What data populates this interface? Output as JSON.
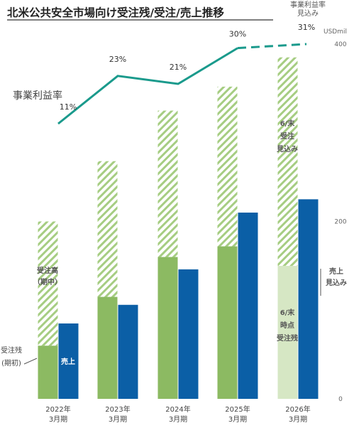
{
  "chart_data": {
    "type": "bar",
    "title": "北米公共安全市場向け受注残/受注/売上推移",
    "unit": "USDmil",
    "ylim": [
      0,
      400
    ],
    "yticks": [
      0,
      200,
      400
    ],
    "categories": [
      "2022年\n3月期",
      "2023年\n3月期",
      "2024年\n3月期",
      "2025年\n3月期",
      "2026年\n3月期"
    ],
    "stack_series": [
      {
        "values": [
          60,
          115,
          160,
          172,
          150
        ],
        "color": "#8cba62",
        "color_last": "#d6e7c4"
      },
      {
        "values": [
          140,
          153,
          165,
          180,
          235
        ],
        "color": "#8cba62"
      }
    ],
    "sales": {
      "values": [
        85,
        106,
        146,
        210,
        225
      ],
      "color": "#0b5fa6"
    },
    "margin_line": {
      "name": "事業利益率",
      "values": [
        11,
        23,
        21,
        30,
        31
      ],
      "labels": [
        "11%",
        "23%",
        "21%",
        "30%",
        "31%"
      ],
      "estimate_index": 4,
      "color": "#1a9a8c"
    },
    "annotations": {
      "orders_in_period": "受注高\n（期中）",
      "backlog_start": "受注残\n(期初)",
      "sales": "売上",
      "orders_forecast": "6/末\n受注\n見込み",
      "backlog_at": "6/末\n時点\n受注残",
      "sales_forecast": "売上\n見込み",
      "margin_forecast": "事業利益率\n見込み"
    }
  }
}
